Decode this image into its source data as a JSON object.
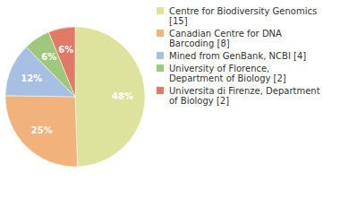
{
  "chart_data": {
    "type": "pie",
    "categories": [
      "Centre for Biodiversity Genomics [15]",
      "Canadian Centre for DNA Barcoding [8]",
      "Mined from GenBank, NCBI [4]",
      "University of Florence, Department of Biology [2]",
      "Universita di Firenze, Department of Biology [2]"
    ],
    "values": [
      48,
      25,
      12,
      6,
      6
    ],
    "value_labels": [
      "48%",
      "25%",
      "12%",
      "6%",
      "6%"
    ],
    "colors": [
      "#dde39c",
      "#f1b27b",
      "#a6bfe2",
      "#9fc87c",
      "#e07a66"
    ],
    "data_labels": true,
    "legend": "right"
  }
}
